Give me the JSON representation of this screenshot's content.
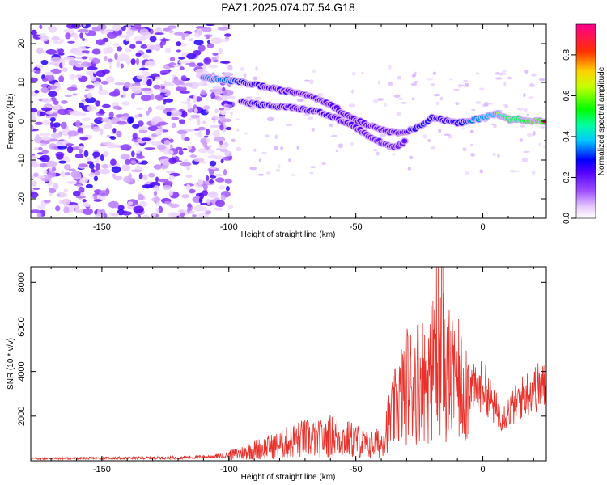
{
  "title": "PAZ1.2025.074.07.54.G18",
  "colors": {
    "snr_line": "#e8312b",
    "background": "#ffffff",
    "axis": "#000000"
  },
  "chart_data": [
    {
      "type": "heatmap",
      "name": "spectrogram",
      "xlabel": "Height of straight line (km)",
      "ylabel": "Frequency (Hz)",
      "xlim": [
        -178,
        25
      ],
      "ylim": [
        -25,
        25
      ],
      "xticks": [
        -150,
        -100,
        -50,
        0
      ],
      "yticks": [
        -20,
        -10,
        0,
        10,
        20
      ],
      "colorbar": {
        "label": "Normalized spectral amplitude",
        "range": [
          0.0,
          0.95
        ],
        "ticks": [
          0.0,
          0.2,
          0.4,
          0.6,
          0.8
        ],
        "colormap": "rainbow (white-violet-blue-cyan-green-yellow-red-magenta)"
      },
      "ridges": [
        {
          "name": "upper branch",
          "points": [
            [
              -110,
              11,
              0.5
            ],
            [
              -100,
              10.5,
              0.45
            ],
            [
              -90,
              9.5,
              0.3
            ],
            [
              -80,
              8,
              0.25
            ],
            [
              -70,
              7,
              0.25
            ],
            [
              -60,
              4.5,
              0.25
            ],
            [
              -55,
              2,
              0.25
            ],
            [
              -45,
              -1,
              0.25
            ],
            [
              -40,
              -2,
              0.2
            ],
            [
              -35,
              -3,
              0.25
            ],
            [
              -30,
              -2.5,
              0.25
            ],
            [
              -25,
              -1.5,
              0.35
            ],
            [
              -20,
              1,
              0.3
            ],
            [
              -10,
              -0.5,
              0.3
            ],
            [
              -5,
              0,
              0.45
            ],
            [
              0,
              1,
              0.5
            ],
            [
              5,
              2,
              0.55
            ],
            [
              10,
              0.5,
              0.75
            ],
            [
              15,
              0.5,
              0.75
            ],
            [
              20,
              0,
              0.9
            ],
            [
              25,
              0,
              0.85
            ]
          ]
        },
        {
          "name": "lower branch",
          "points": [
            [
              -95,
              5,
              0.3
            ],
            [
              -85,
              4,
              0.3
            ],
            [
              -75,
              3.5,
              0.25
            ],
            [
              -65,
              2.5,
              0.3
            ],
            [
              -55,
              0,
              0.25
            ],
            [
              -50,
              -1.5,
              0.25
            ],
            [
              -45,
              -4,
              0.2
            ],
            [
              -40,
              -5.5,
              0.2
            ],
            [
              -35,
              -7,
              0.2
            ],
            [
              -30,
              -5,
              0.2
            ]
          ]
        }
      ]
    },
    {
      "type": "line",
      "name": "snr",
      "xlabel": "Height of straight line (km)",
      "ylabel": "SNR (10 * v/v)",
      "xlim": [
        -178,
        25
      ],
      "ylim": [
        0,
        8700
      ],
      "xticks": [
        -150,
        -100,
        -50,
        0
      ],
      "yticks": [
        2000,
        4000,
        6000,
        8000
      ],
      "series": [
        {
          "name": "SNR",
          "x": [
            -178,
            -160,
            -140,
            -120,
            -108,
            -100,
            -95,
            -90,
            -85,
            -80,
            -75,
            -70,
            -65,
            -60,
            -55,
            -50,
            -45,
            -40,
            -38,
            -35,
            -32,
            -30,
            -28,
            -25,
            -22,
            -20,
            -18,
            -16,
            -14,
            -12,
            -10,
            -8,
            -6,
            -4,
            -2,
            0,
            2,
            4,
            6,
            8,
            10,
            12,
            14,
            16,
            18,
            20,
            22,
            25
          ],
          "values": [
            100,
            110,
            120,
            140,
            180,
            250,
            350,
            500,
            600,
            700,
            900,
            1000,
            950,
            1100,
            1000,
            900,
            700,
            800,
            1500,
            2200,
            3000,
            3500,
            3400,
            3800,
            3600,
            4000,
            5500,
            4500,
            3600,
            3500,
            3600,
            3300,
            3400,
            3300,
            3000,
            3500,
            3000,
            2500,
            2200,
            2000,
            2200,
            2400,
            2700,
            2900,
            3100,
            3200,
            3300,
            3250
          ]
        }
      ]
    }
  ]
}
